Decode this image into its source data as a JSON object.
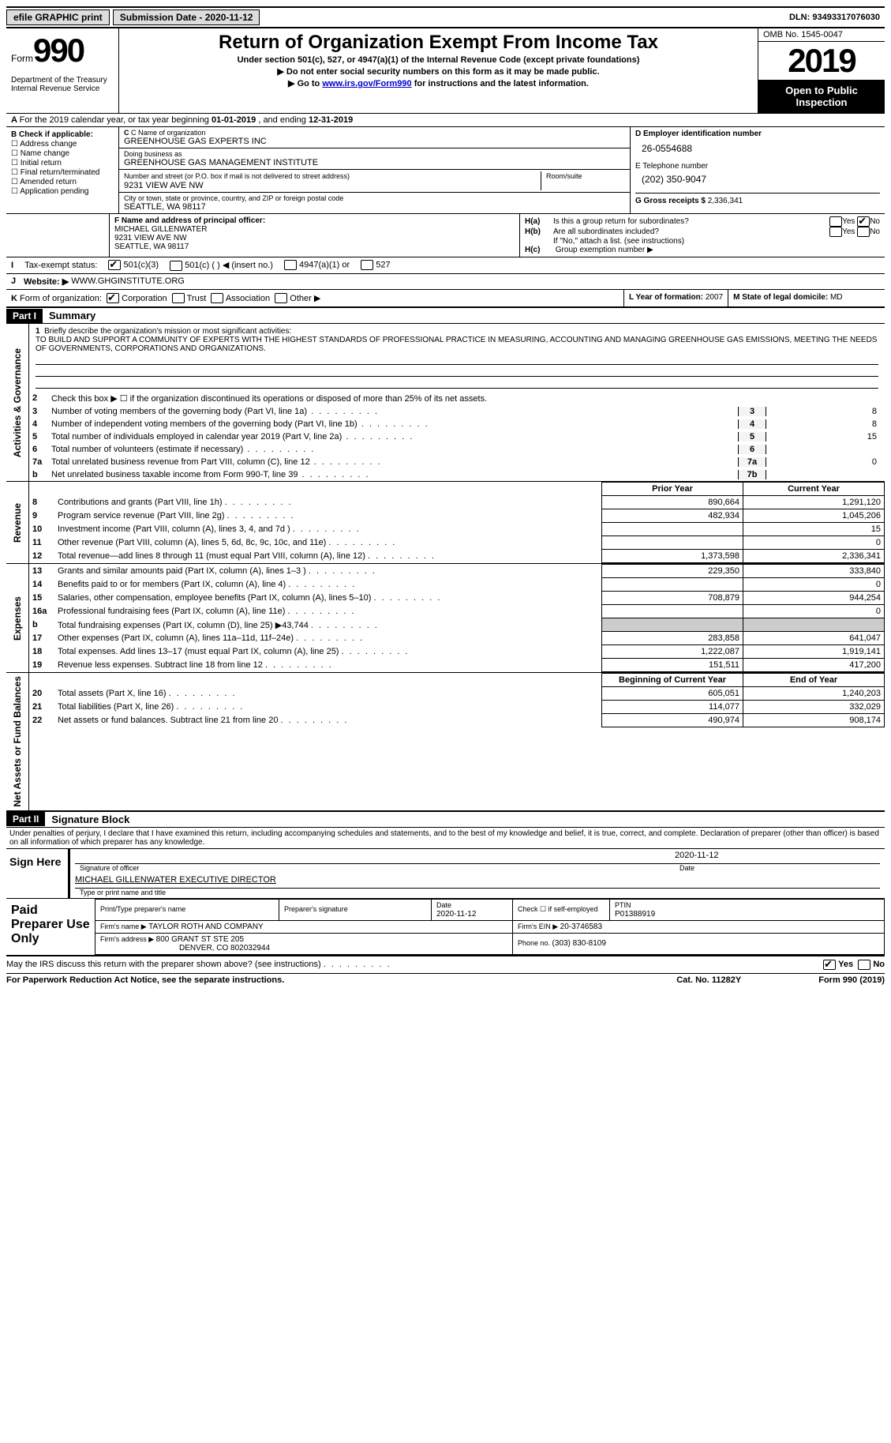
{
  "topbar": {
    "efile": "efile GRAPHIC print",
    "submission_label": "Submission Date - ",
    "submission_date": "2020-11-12",
    "dln_label": "DLN: ",
    "dln": "93493317076030"
  },
  "header": {
    "form_word": "Form",
    "form_num": "990",
    "dept": "Department of the Treasury\nInternal Revenue Service",
    "title": "Return of Organization Exempt From Income Tax",
    "sub1": "Under section 501(c), 527, or 4947(a)(1) of the Internal Revenue Code (except private foundations)",
    "sub2": "Do not enter social security numbers on this form as it may be made public.",
    "sub3_pre": "Go to ",
    "sub3_link": "www.irs.gov/Form990",
    "sub3_post": " for instructions and the latest information.",
    "omb": "OMB No. 1545-0047",
    "year": "2019",
    "inspect": "Open to Public Inspection"
  },
  "period": {
    "a": "A",
    "text": "For the 2019 calendar year, or tax year beginning ",
    "begin": "01-01-2019",
    "mid": " , and ending ",
    "end": "12-31-2019"
  },
  "boxB": {
    "hdr": "B Check if applicable:",
    "items": [
      "Address change",
      "Name change",
      "Initial return",
      "Final return/terminated",
      "Amended return",
      "Application pending"
    ]
  },
  "boxC": {
    "name_lbl": "C Name of organization",
    "name": "GREENHOUSE GAS EXPERTS INC",
    "dba_lbl": "Doing business as",
    "dba": "GREENHOUSE GAS MANAGEMENT INSTITUTE",
    "street_lbl": "Number and street (or P.O. box if mail is not delivered to street address)",
    "room_lbl": "Room/suite",
    "street": "9231 VIEW AVE NW",
    "city_lbl": "City or town, state or province, country, and ZIP or foreign postal code",
    "city": "SEATTLE, WA  98117"
  },
  "boxD": {
    "hdr": "D Employer identification number",
    "ein": "26-0554688",
    "phone_hdr": "E Telephone number",
    "phone": "(202) 350-9047",
    "gross_hdr": "G Gross receipts $ ",
    "gross": "2,336,341"
  },
  "boxF": {
    "hdr": "F Name and address of principal officer:",
    "name": "MICHAEL GILLENWATER",
    "addr1": "9231 VIEW AVE NW",
    "addr2": "SEATTLE, WA  98117"
  },
  "boxH": {
    "a_lbl": "H(a)",
    "a_txt": "Is this a group return for subordinates?",
    "b_lbl": "H(b)",
    "b_txt": "Are all subordinates included?",
    "note": "If \"No,\" attach a list. (see instructions)",
    "c_lbl": "H(c)",
    "c_txt": "Group exemption number ▶",
    "yes": "Yes",
    "no": "No"
  },
  "rowI": {
    "i": "I",
    "lbl": "Tax-exempt status:",
    "o1": "501(c)(3)",
    "o2": "501(c) (  ) ◀ (insert no.)",
    "o3": "4947(a)(1) or",
    "o4": "527"
  },
  "rowJ": {
    "j": "J",
    "lbl": "Website: ▶",
    "val": "WWW.GHGINSTITUTE.ORG"
  },
  "rowK": {
    "k": "K",
    "lbl": "Form of organization:",
    "o1": "Corporation",
    "o2": "Trust",
    "o3": "Association",
    "o4": "Other ▶",
    "l_lbl": "L Year of formation: ",
    "l_val": "2007",
    "m_lbl": "M State of legal domicile: ",
    "m_val": "MD"
  },
  "part1": {
    "num": "Part I",
    "title": "Summary"
  },
  "tabs": {
    "governance": "Activities & Governance",
    "revenue": "Revenue",
    "expenses": "Expenses",
    "netassets": "Net Assets or Fund Balances"
  },
  "mission": {
    "num": "1",
    "lbl": "Briefly describe the organization's mission or most significant activities:",
    "txt": "TO BUILD AND SUPPORT A COMMUNITY OF EXPERTS WITH THE HIGHEST STANDARDS OF PROFESSIONAL PRACTICE IN MEASURING, ACCOUNTING AND MANAGING GREENHOUSE GAS EMISSIONS, MEETING THE NEEDS OF GOVERNMENTS, CORPORATIONS AND ORGANIZATIONS."
  },
  "gov_lines": [
    {
      "n": "2",
      "d": "Check this box ▶ ☐  if the organization discontinued its operations or disposed of more than 25% of its net assets.",
      "box": "",
      "v": ""
    },
    {
      "n": "3",
      "d": "Number of voting members of the governing body (Part VI, line 1a)",
      "box": "3",
      "v": "8"
    },
    {
      "n": "4",
      "d": "Number of independent voting members of the governing body (Part VI, line 1b)",
      "box": "4",
      "v": "8"
    },
    {
      "n": "5",
      "d": "Total number of individuals employed in calendar year 2019 (Part V, line 2a)",
      "box": "5",
      "v": "15"
    },
    {
      "n": "6",
      "d": "Total number of volunteers (estimate if necessary)",
      "box": "6",
      "v": ""
    },
    {
      "n": "7a",
      "d": "Total unrelated business revenue from Part VIII, column (C), line 12",
      "box": "7a",
      "v": "0"
    },
    {
      "n": "b",
      "d": "Net unrelated business taxable income from Form 990-T, line 39",
      "box": "7b",
      "v": ""
    }
  ],
  "fin_hdr": {
    "prior": "Prior Year",
    "curr": "Current Year",
    "beg": "Beginning of Current Year",
    "end": "End of Year"
  },
  "revenue": [
    {
      "n": "8",
      "d": "Contributions and grants (Part VIII, line 1h)",
      "p": "890,664",
      "c": "1,291,120"
    },
    {
      "n": "9",
      "d": "Program service revenue (Part VIII, line 2g)",
      "p": "482,934",
      "c": "1,045,206"
    },
    {
      "n": "10",
      "d": "Investment income (Part VIII, column (A), lines 3, 4, and 7d )",
      "p": "",
      "c": "15"
    },
    {
      "n": "11",
      "d": "Other revenue (Part VIII, column (A), lines 5, 6d, 8c, 9c, 10c, and 11e)",
      "p": "",
      "c": "0"
    },
    {
      "n": "12",
      "d": "Total revenue—add lines 8 through 11 (must equal Part VIII, column (A), line 12)",
      "p": "1,373,598",
      "c": "2,336,341"
    }
  ],
  "expenses": [
    {
      "n": "13",
      "d": "Grants and similar amounts paid (Part IX, column (A), lines 1–3 )",
      "p": "229,350",
      "c": "333,840"
    },
    {
      "n": "14",
      "d": "Benefits paid to or for members (Part IX, column (A), line 4)",
      "p": "",
      "c": "0"
    },
    {
      "n": "15",
      "d": "Salaries, other compensation, employee benefits (Part IX, column (A), lines 5–10)",
      "p": "708,879",
      "c": "944,254"
    },
    {
      "n": "16a",
      "d": "Professional fundraising fees (Part IX, column (A), line 11e)",
      "p": "",
      "c": "0"
    },
    {
      "n": "b",
      "d": "Total fundraising expenses (Part IX, column (D), line 25) ▶43,744",
      "p": "shade",
      "c": "shade"
    },
    {
      "n": "17",
      "d": "Other expenses (Part IX, column (A), lines 11a–11d, 11f–24e)",
      "p": "283,858",
      "c": "641,047"
    },
    {
      "n": "18",
      "d": "Total expenses. Add lines 13–17 (must equal Part IX, column (A), line 25)",
      "p": "1,222,087",
      "c": "1,919,141"
    },
    {
      "n": "19",
      "d": "Revenue less expenses. Subtract line 18 from line 12",
      "p": "151,511",
      "c": "417,200"
    }
  ],
  "netassets": [
    {
      "n": "20",
      "d": "Total assets (Part X, line 16)",
      "p": "605,051",
      "c": "1,240,203"
    },
    {
      "n": "21",
      "d": "Total liabilities (Part X, line 26)",
      "p": "114,077",
      "c": "332,029"
    },
    {
      "n": "22",
      "d": "Net assets or fund balances. Subtract line 21 from line 20",
      "p": "490,974",
      "c": "908,174"
    }
  ],
  "part2": {
    "num": "Part II",
    "title": "Signature Block"
  },
  "perjury": "Under penalties of perjury, I declare that I have examined this return, including accompanying schedules and statements, and to the best of my knowledge and belief, it is true, correct, and complete. Declaration of preparer (other than officer) is based on all information of which preparer has any knowledge.",
  "sign": {
    "here": "Sign Here",
    "sig_lbl": "Signature of officer",
    "date_lbl": "Date",
    "date": "2020-11-12",
    "name": "MICHAEL GILLENWATER EXECUTIVE DIRECTOR",
    "name_lbl": "Type or print name and title"
  },
  "paid": {
    "title": "Paid Preparer Use Only",
    "col1": "Print/Type preparer's name",
    "col2": "Preparer's signature",
    "col3_lbl": "Date",
    "col3": "2020-11-12",
    "col4": "Check ☐ if self-employed",
    "col5_lbl": "PTIN",
    "col5": "P01388919",
    "firm_name_lbl": "Firm's name    ▶ ",
    "firm_name": "TAYLOR ROTH AND COMPANY",
    "firm_ein_lbl": "Firm's EIN ▶ ",
    "firm_ein": "20-3746583",
    "firm_addr_lbl": "Firm's address ▶ ",
    "firm_addr1": "800 GRANT ST STE 205",
    "firm_addr2": "DENVER, CO  802032944",
    "phone_lbl": "Phone no. ",
    "phone": "(303) 830-8109"
  },
  "discuss": {
    "txt": "May the IRS discuss this return with the preparer shown above? (see instructions)",
    "yes": "Yes",
    "no": "No"
  },
  "footer": {
    "left": "For Paperwork Reduction Act Notice, see the separate instructions.",
    "mid": "Cat. No. 11282Y",
    "right": "Form 990 (2019)"
  }
}
